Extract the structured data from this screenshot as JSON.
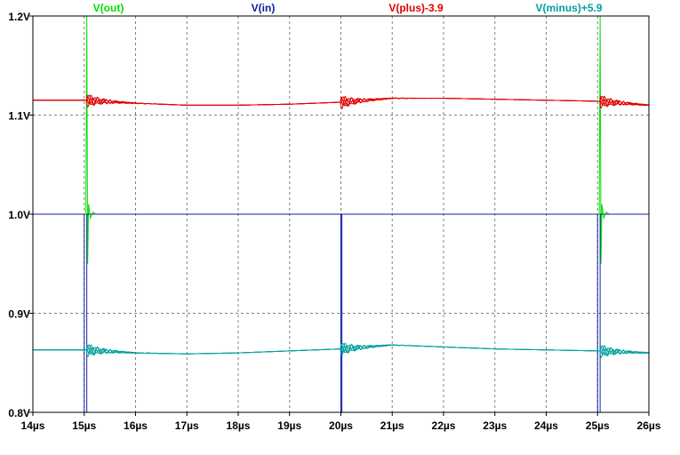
{
  "chart_data": {
    "type": "line",
    "title": "",
    "xlabel": "",
    "ylabel": "",
    "xlim": [
      14,
      26
    ],
    "ylim": [
      0.8,
      1.2
    ],
    "x_unit": "µs",
    "y_unit": "V",
    "grid": true,
    "legend_placement": "top",
    "x_ticks": [
      14,
      15,
      16,
      17,
      18,
      19,
      20,
      21,
      22,
      23,
      24,
      25,
      26
    ],
    "x_tick_labels": [
      "14µs",
      "15µs",
      "16µs",
      "17µs",
      "18µs",
      "19µs",
      "20µs",
      "21µs",
      "22µs",
      "23µs",
      "24µs",
      "25µs",
      "26µs"
    ],
    "y_ticks": [
      0.8,
      0.9,
      1.0,
      1.1,
      1.2
    ],
    "y_tick_labels": [
      "0.8V",
      "0.9V",
      "1.0V",
      "1.1V",
      "1.2V"
    ],
    "series": [
      {
        "name": "V(out)",
        "color": "#00e000",
        "base": 1.0,
        "events": [
          15.05,
          25.05
        ],
        "spike_high": 1.2,
        "spike_low": 0.95
      },
      {
        "name": "V(in)",
        "color": "#1020a0",
        "x": [
          14,
          15.0,
          15.0,
          15.05,
          15.05,
          20.0,
          20.0,
          20.02,
          20.02,
          25.0,
          25.0,
          25.05,
          25.05,
          26
        ],
        "y": [
          1.0,
          1.0,
          0.8,
          0.8,
          1.0,
          1.0,
          0.8,
          0.8,
          1.0,
          1.0,
          0.8,
          0.8,
          1.0,
          1.0
        ]
      },
      {
        "name": "V(plus)-3.9",
        "color": "#e00000",
        "x": [
          14,
          15.0,
          16.0,
          17.0,
          18.0,
          19.0,
          20.0,
          21.0,
          22.0,
          23.0,
          24.0,
          25.0,
          26.0
        ],
        "y": [
          1.115,
          1.115,
          1.112,
          1.11,
          1.11,
          1.111,
          1.113,
          1.117,
          1.117,
          1.116,
          1.115,
          1.114,
          1.11
        ]
      },
      {
        "name": "V(minus)+5.9",
        "color": "#00a0a0",
        "x": [
          14,
          15.0,
          16.0,
          17.0,
          18.0,
          19.0,
          20.0,
          21.0,
          22.0,
          23.0,
          24.0,
          25.0,
          26.0
        ],
        "y": [
          0.863,
          0.863,
          0.86,
          0.859,
          0.86,
          0.862,
          0.864,
          0.868,
          0.866,
          0.864,
          0.863,
          0.862,
          0.86
        ]
      }
    ]
  }
}
